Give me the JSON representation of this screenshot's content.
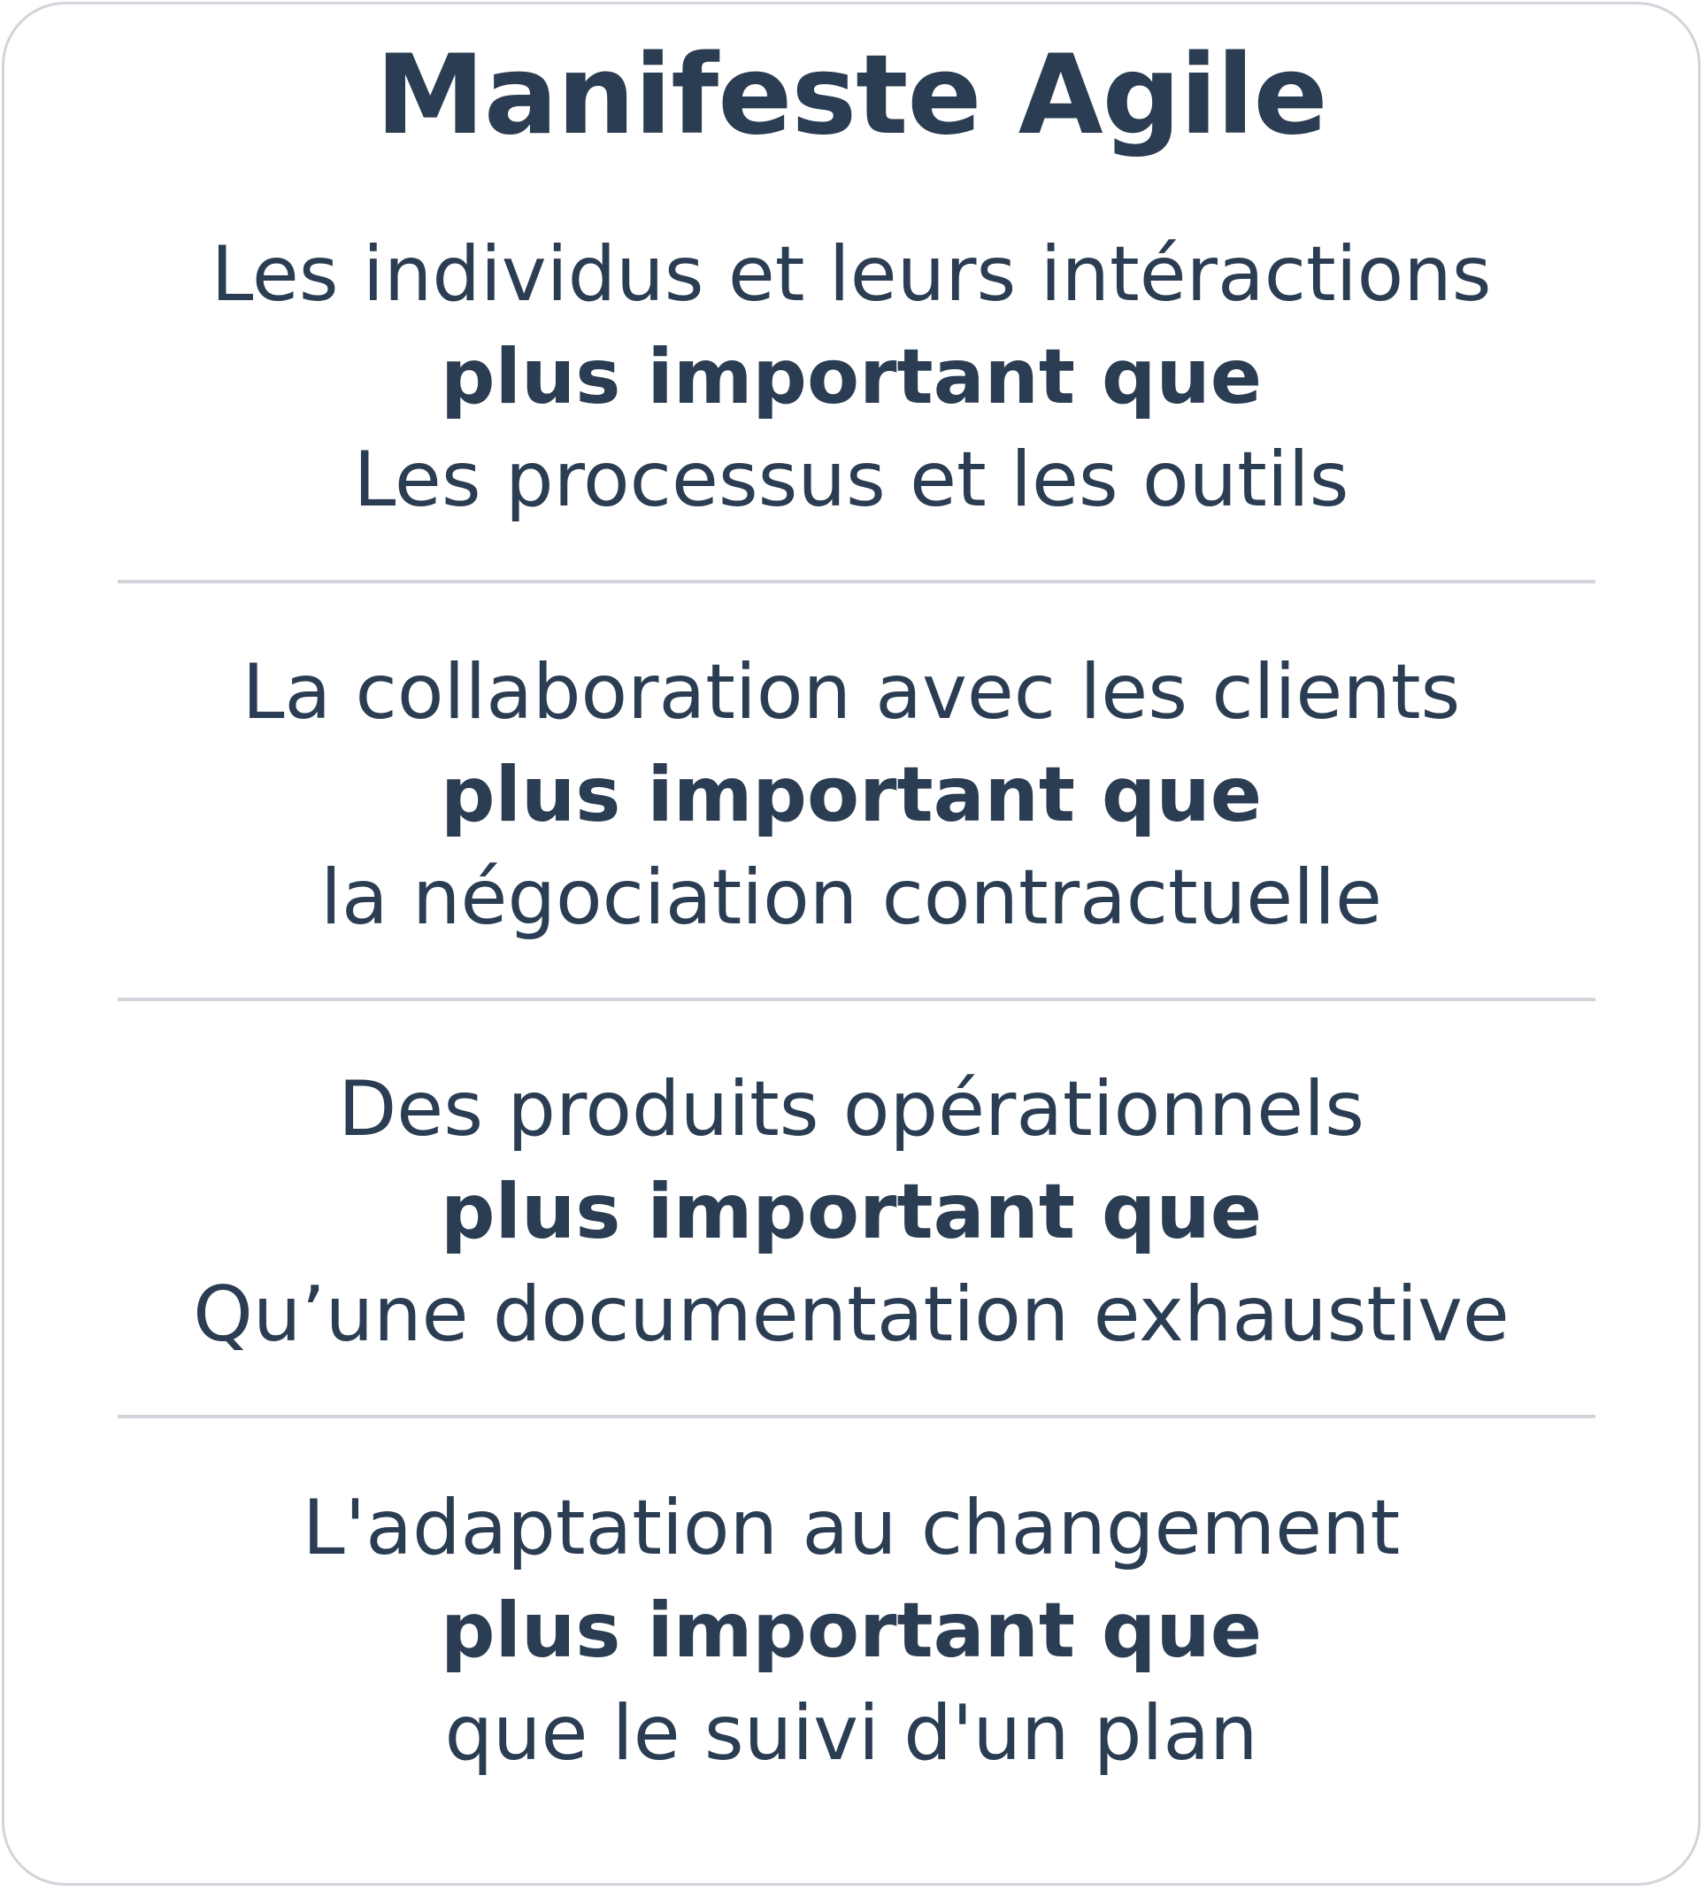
{
  "title": "Manifeste Agile",
  "values": [
    {
      "preferred": "Les individus et leurs intéractions",
      "connector": "plus important que",
      "over": "Les processus et les outils"
    },
    {
      "preferred": "La collaboration avec les clients",
      "connector": "plus important que",
      "over": "la négociation contractuelle"
    },
    {
      "preferred": "Des produits opérationnels",
      "connector": "plus important que",
      "over": "Qu’une documentation exhaustive"
    },
    {
      "preferred": "L'adaptation au changement",
      "connector": "plus important que",
      "over": "que le suivi d'un plan"
    }
  ],
  "colors": {
    "text": "#2b3d52",
    "border": "#d1d5db",
    "background": "#ffffff"
  }
}
